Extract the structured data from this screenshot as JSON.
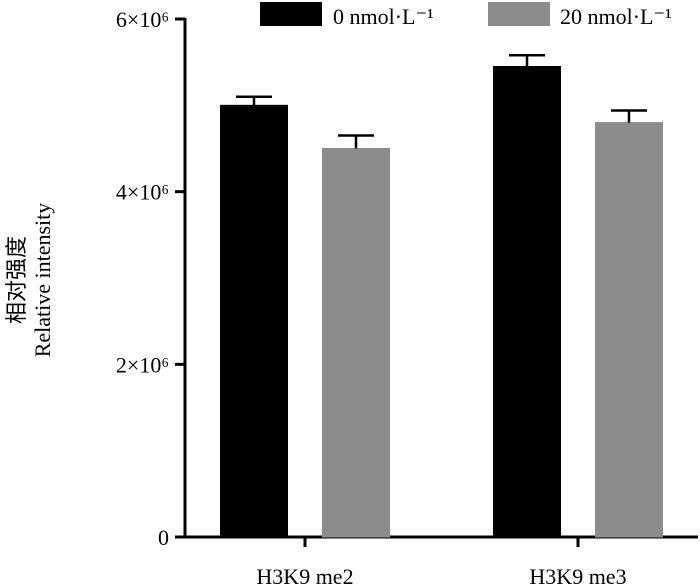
{
  "chart_data": {
    "type": "bar",
    "categories": [
      "H3K9 me2",
      "H3K9 me3"
    ],
    "series": [
      {
        "name": "0 nmol·L⁻¹",
        "color": "#000000",
        "values": [
          5000000,
          5450000
        ],
        "errors": [
          100000,
          130000
        ]
      },
      {
        "name": "20 nmol·L⁻¹",
        "color": "#8c8c8c",
        "values": [
          4500000,
          4800000
        ],
        "errors": [
          150000,
          140000
        ]
      }
    ],
    "ylabel_cn": "相对强度",
    "ylabel": "Relative intensity",
    "ylim": [
      0,
      6000000
    ],
    "yticks": [
      {
        "value": 0,
        "label": "0"
      },
      {
        "value": 2000000,
        "label": "2×10⁶"
      },
      {
        "value": 4000000,
        "label": "4×10⁶"
      },
      {
        "value": 6000000,
        "label": "6×10⁶"
      }
    ],
    "grid": false,
    "legend_position": "top-right"
  }
}
